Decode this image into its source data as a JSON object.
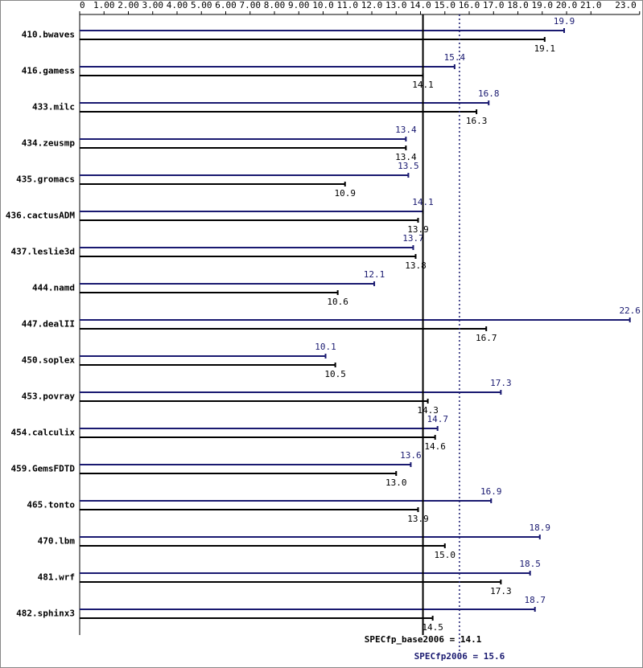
{
  "chart_data": {
    "type": "bar",
    "orientation": "horizontal",
    "categories": [
      "410.bwaves",
      "416.gamess",
      "433.milc",
      "434.zeusmp",
      "435.gromacs",
      "436.cactusADM",
      "437.leslie3d",
      "444.namd",
      "447.dealII",
      "450.soplex",
      "453.povray",
      "454.calculix",
      "459.GemsFDTD",
      "465.tonto",
      "470.lbm",
      "481.wrf",
      "482.sphinx3"
    ],
    "series": [
      {
        "color": "#191970",
        "values": [
          19.9,
          15.4,
          16.8,
          13.4,
          13.5,
          14.1,
          13.7,
          12.1,
          22.6,
          10.1,
          17.3,
          14.7,
          13.6,
          16.9,
          18.9,
          18.5,
          18.7
        ]
      },
      {
        "color": "#000000",
        "values": [
          19.1,
          14.1,
          16.3,
          13.4,
          10.9,
          13.9,
          13.8,
          10.6,
          16.7,
          10.5,
          14.3,
          14.6,
          13.0,
          13.9,
          15.0,
          17.3,
          14.5
        ],
        "value_labels": [
          "19.1",
          "14.1",
          "16.3",
          "13.4",
          "10.9",
          "13.9",
          "13.8",
          "10.6",
          "16.7",
          "10.5",
          "14.3",
          "14.6",
          "13.0",
          "13.9",
          "15.0",
          "17.3",
          "14.5"
        ]
      }
    ],
    "xlim": [
      0,
      23
    ],
    "xticks": [
      0,
      {
        "value": 1,
        "label": "1.00"
      },
      {
        "value": 2,
        "label": "2.00"
      },
      {
        "value": 3,
        "label": "3.00"
      },
      {
        "value": 4,
        "label": "4.00"
      },
      {
        "value": 5,
        "label": "5.00"
      },
      {
        "value": 6,
        "label": "6.00"
      },
      {
        "value": 7,
        "label": "7.00"
      },
      {
        "value": 8,
        "label": "8.00"
      },
      {
        "value": 9,
        "label": "9.00"
      },
      {
        "value": 10,
        "label": "10.0"
      },
      {
        "value": 11,
        "label": "11.0"
      },
      {
        "value": 12,
        "label": "12.0"
      },
      {
        "value": 13,
        "label": "13.0"
      },
      {
        "value": 14,
        "label": "14.0"
      },
      {
        "value": 15,
        "label": "15.0"
      },
      {
        "value": 16,
        "label": "16.0"
      },
      {
        "value": 17,
        "label": "17.0"
      },
      {
        "value": 18,
        "label": "18.0"
      },
      {
        "value": 19,
        "label": "19.0"
      },
      {
        "value": 20,
        "label": "20.0"
      },
      {
        "value": 21,
        "label": "21.0"
      },
      {
        "value": 23,
        "label": "23.0"
      }
    ],
    "reference_lines": [
      {
        "value": 14.1,
        "label": "SPECfp_base2006 = 14.1",
        "color": "#000000",
        "dotted": false
      },
      {
        "value": 15.6,
        "label": "SPECfp2006 = 15.6",
        "color": "#191970",
        "dotted": true
      }
    ]
  }
}
